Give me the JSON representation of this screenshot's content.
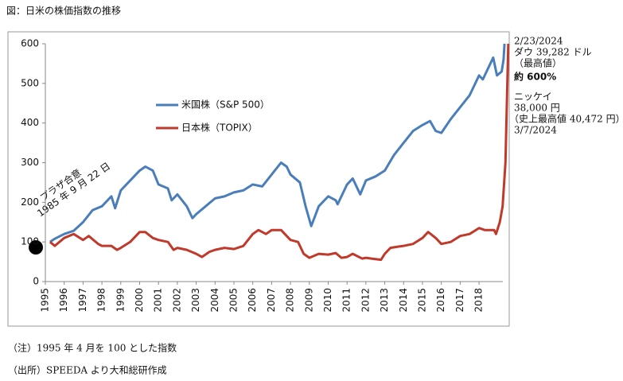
{
  "chart_data": {
    "type": "line",
    "title": "図：日米の株価指数の推移",
    "xlim": [
      1995,
      2019.6
    ],
    "xticks": [
      1995,
      1996,
      1997,
      1998,
      1999,
      2000,
      2001,
      2002,
      2003,
      2004,
      2005,
      2006,
      2007,
      2008,
      2009,
      2010,
      2011,
      2012,
      2013,
      2014,
      2015,
      2016,
      2017,
      2018
    ],
    "ylim": [
      0,
      600
    ],
    "yticks": [
      0,
      100,
      200,
      300,
      400,
      500,
      600
    ],
    "grid": false,
    "legend": "upper left",
    "series": [
      {
        "name": "米国株（S&P 500）",
        "color": "#4a7ebb",
        "x": [
          1995.25,
          1995.5,
          1996,
          1996.5,
          1997,
          1997.5,
          1998,
          1998.5,
          1998.7,
          1999,
          1999.5,
          2000,
          2000.3,
          2000.7,
          2001,
          2001.5,
          2001.7,
          2002,
          2002.5,
          2002.8,
          2003,
          2003.5,
          2004,
          2004.5,
          2005,
          2005.5,
          2006,
          2006.5,
          2007,
          2007.5,
          2007.8,
          2008,
          2008.5,
          2008.8,
          2009.1,
          2009.5,
          2010,
          2010.4,
          2010.5,
          2011,
          2011.3,
          2011.7,
          2012,
          2012.5,
          2013,
          2013.5,
          2014,
          2014.5,
          2015,
          2015.4,
          2015.7,
          2016,
          2016.5,
          2017,
          2017.5,
          2018,
          2018.2,
          2018.75,
          2018.95,
          2019.2,
          2019.3,
          2019.35
        ],
        "values": [
          100,
          108,
          120,
          128,
          150,
          180,
          190,
          215,
          185,
          230,
          255,
          280,
          290,
          280,
          245,
          235,
          205,
          220,
          190,
          160,
          170,
          190,
          210,
          215,
          225,
          230,
          245,
          240,
          270,
          300,
          290,
          270,
          250,
          190,
          140,
          190,
          215,
          205,
          195,
          245,
          260,
          220,
          255,
          265,
          280,
          320,
          350,
          380,
          395,
          405,
          380,
          375,
          410,
          440,
          470,
          520,
          510,
          565,
          520,
          530,
          560,
          600
        ]
      },
      {
        "name": "日本株（TOPIX）",
        "color": "#c0392b",
        "x": [
          1995.25,
          1995.5,
          1996,
          1996.5,
          1997,
          1997.3,
          1997.8,
          1998,
          1998.5,
          1998.8,
          1999,
          1999.5,
          2000,
          2000.3,
          2000.7,
          2001,
          2001.5,
          2001.8,
          2002,
          2002.5,
          2003,
          2003.3,
          2003.7,
          2004,
          2004.5,
          2005,
          2005.5,
          2006,
          2006.3,
          2006.7,
          2007,
          2007.5,
          2007.8,
          2008,
          2008.4,
          2008.7,
          2009,
          2009.5,
          2010,
          2010.4,
          2010.7,
          2011,
          2011.3,
          2011.8,
          2012,
          2012.3,
          2012.8,
          2013,
          2013.3,
          2013.7,
          2014,
          2014.5,
          2015,
          2015.3,
          2015.7,
          2016,
          2016.5,
          2017,
          2017.5,
          2018,
          2018.3,
          2018.8,
          2018.9,
          2019.1,
          2019.25,
          2019.4,
          2019.55
        ],
        "values": [
          100,
          90,
          110,
          120,
          105,
          115,
          95,
          90,
          90,
          80,
          85,
          100,
          125,
          125,
          110,
          105,
          100,
          80,
          85,
          80,
          70,
          62,
          75,
          80,
          85,
          82,
          90,
          120,
          130,
          120,
          130,
          130,
          115,
          105,
          100,
          70,
          60,
          70,
          68,
          72,
          60,
          62,
          70,
          58,
          60,
          58,
          55,
          70,
          85,
          88,
          90,
          95,
          110,
          125,
          110,
          95,
          100,
          115,
          120,
          135,
          130,
          130,
          120,
          150,
          190,
          300,
          600
        ]
      }
    ],
    "annotations": [
      "プラザ合意",
      "1985 年 9 月 22 日",
      "2/23/2024",
      "ダウ 39,282 ドル",
      "（最高値）",
      "約 600%",
      "ニッケイ",
      "38,000 円",
      "（史上最高値 40,472 円）",
      "3/7/2024"
    ],
    "notes": [
      "（注）1995 年 4 月を 100 とした指数",
      "（出所）SPEEDA より大和総研作成"
    ]
  }
}
